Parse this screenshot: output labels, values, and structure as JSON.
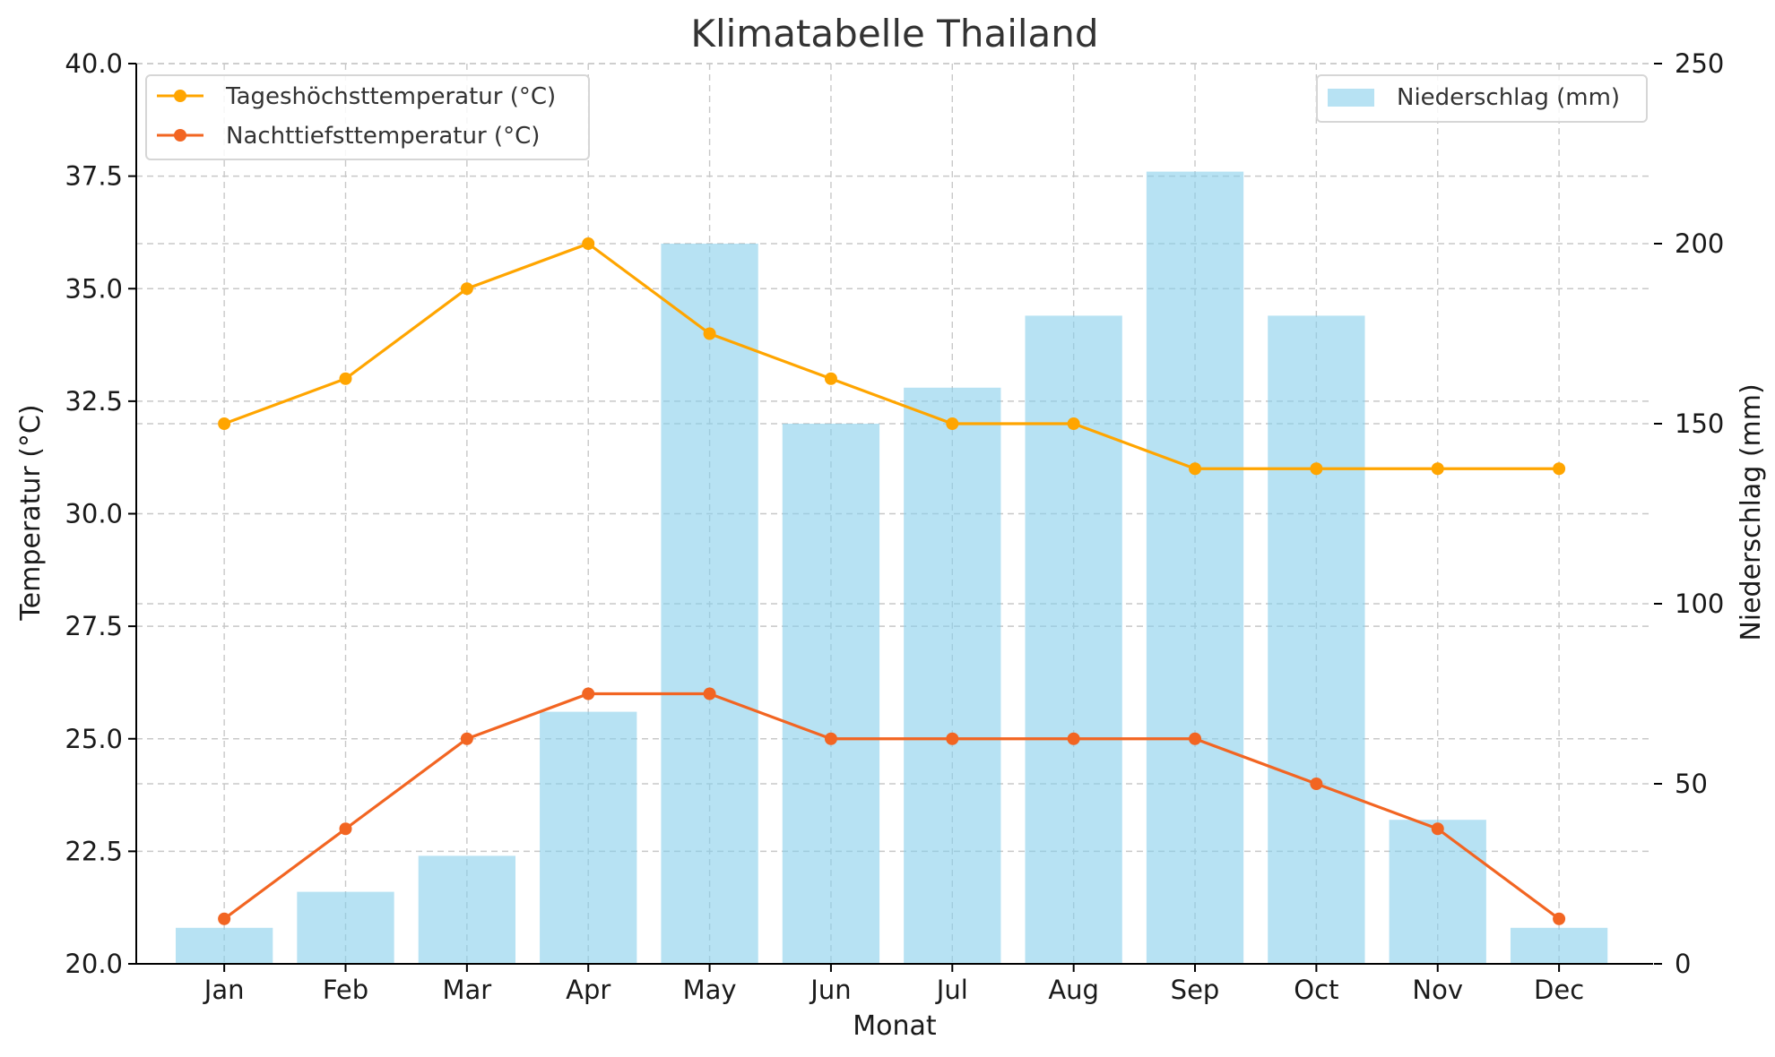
{
  "chart_data": {
    "type": "bar+line",
    "title": "Klimatabelle Thailand",
    "xlabel": "Monat",
    "ylabel_left": "Temperatur (°C)",
    "ylabel_right": "Niederschlag (mm)",
    "categories": [
      "Jan",
      "Feb",
      "Mar",
      "Apr",
      "May",
      "Jun",
      "Jul",
      "Aug",
      "Sep",
      "Oct",
      "Nov",
      "Dec"
    ],
    "y_left_range": [
      20.0,
      40.0
    ],
    "y_left_ticks": [
      "20.0",
      "22.5",
      "25.0",
      "27.5",
      "30.0",
      "32.5",
      "35.0",
      "37.5",
      "40.0"
    ],
    "y_right_range": [
      0,
      250
    ],
    "y_right_ticks": [
      "0",
      "50",
      "100",
      "150",
      "200",
      "250"
    ],
    "grid": true,
    "series": [
      {
        "name": "Niederschlag (mm)",
        "kind": "bar",
        "axis": "right",
        "color": "#87ceeb",
        "opacity": 0.6,
        "values": [
          10,
          20,
          30,
          70,
          200,
          150,
          160,
          180,
          220,
          180,
          40,
          10
        ]
      },
      {
        "name": "Tageshöchsttemperatur (°C)",
        "kind": "line",
        "axis": "left",
        "color": "#ffa500",
        "values": [
          32,
          33,
          35,
          36,
          34,
          33,
          32,
          32,
          31,
          31,
          31,
          31
        ]
      },
      {
        "name": "Nachttiefsttemperatur (°C)",
        "kind": "line",
        "axis": "left",
        "color": "#f26522",
        "values": [
          21,
          23,
          25,
          26,
          26,
          25,
          25,
          25,
          25,
          24,
          23,
          21
        ]
      }
    ],
    "legends": [
      {
        "placement": "top-left",
        "entries": [
          "Tageshöchsttemperatur (°C)",
          "Nachttiefsttemperatur (°C)"
        ]
      },
      {
        "placement": "top-right",
        "entries": [
          "Niederschlag (mm)"
        ]
      }
    ]
  }
}
